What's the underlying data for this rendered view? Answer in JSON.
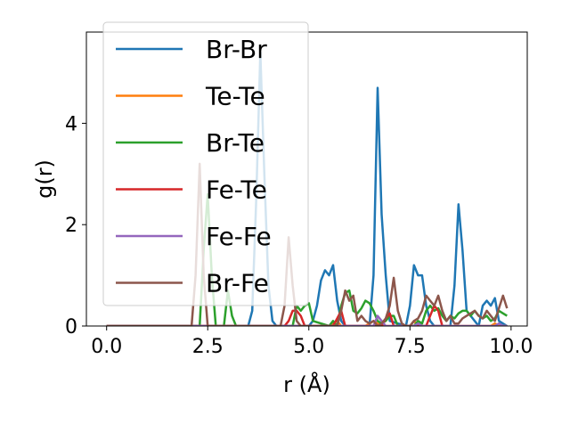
{
  "chart_data": {
    "type": "line",
    "title": "",
    "xlabel": "r (Å)",
    "ylabel": "g(r)",
    "xlim": [
      -0.5,
      10.4
    ],
    "ylim": [
      0,
      5.8
    ],
    "xticks": [
      0.0,
      2.5,
      5.0,
      7.5,
      10.0
    ],
    "xtick_labels": [
      "0.0",
      "2.5",
      "5.0",
      "7.5",
      "10.0"
    ],
    "yticks": [
      0,
      2,
      4
    ],
    "ytick_labels": [
      "0",
      "2",
      "4"
    ],
    "grid": false,
    "legend_position": "upper-left",
    "series": [
      {
        "name": "Br-Br",
        "color": "#1f77b4",
        "x": [
          0,
          3.5,
          3.6,
          3.7,
          3.8,
          3.9,
          4.0,
          4.1,
          4.2,
          5.0,
          5.1,
          5.2,
          5.3,
          5.4,
          5.5,
          5.6,
          5.7,
          5.8,
          5.9,
          6.5,
          6.6,
          6.7,
          6.8,
          6.9,
          7.0,
          7.4,
          7.5,
          7.6,
          7.7,
          7.8,
          7.9,
          8.0,
          8.1,
          8.5,
          8.6,
          8.7,
          8.8,
          8.9,
          9.2,
          9.3,
          9.4,
          9.5,
          9.6,
          9.7,
          9.9
        ],
        "y": [
          0,
          0,
          0.3,
          2.5,
          5.4,
          3.0,
          0.8,
          0.1,
          0,
          0,
          0.1,
          0.4,
          0.9,
          1.1,
          1.0,
          1.2,
          0.5,
          0.1,
          0,
          0,
          1.0,
          4.7,
          2.2,
          1.0,
          0.1,
          0,
          0.4,
          1.2,
          1.0,
          1.0,
          0.4,
          0.1,
          0,
          0,
          0.8,
          2.4,
          1.5,
          0.3,
          0,
          0.4,
          0.5,
          0.4,
          0.55,
          0.1,
          0
        ]
      },
      {
        "name": "Te-Te",
        "color": "#ff7f0e",
        "x": [
          0,
          5.5,
          5.6,
          5.7,
          5.8,
          6.4,
          6.5,
          6.6,
          6.7,
          6.8,
          7.5,
          7.6,
          7.7,
          9.5,
          9.6,
          9.7,
          9.9
        ],
        "y": [
          0,
          0,
          0.05,
          0.1,
          0,
          0,
          0.05,
          0.1,
          0.05,
          0,
          0,
          0.1,
          0,
          0,
          0.05,
          0,
          0
        ]
      },
      {
        "name": "Br-Te",
        "color": "#2ca02c",
        "x": [
          0,
          2.3,
          2.4,
          2.5,
          2.6,
          2.7,
          2.9,
          3.0,
          3.1,
          3.2,
          4.6,
          4.7,
          4.8,
          4.9,
          5.0,
          5.1,
          5.5,
          5.6,
          5.7,
          5.8,
          5.9,
          6.0,
          6.1,
          6.2,
          6.3,
          6.4,
          6.5,
          6.6,
          6.7,
          6.8,
          6.9,
          7.0,
          7.1,
          7.2,
          7.6,
          7.7,
          7.8,
          7.9,
          8.0,
          8.1,
          8.2,
          8.3,
          8.4,
          8.5,
          8.6,
          8.7,
          8.8,
          8.9,
          9.0,
          9.1,
          9.2,
          9.3,
          9.4,
          9.5,
          9.6,
          9.7,
          9.8,
          9.9
        ],
        "y": [
          0,
          0,
          1.5,
          2.6,
          1.0,
          0,
          0,
          0.7,
          0.2,
          0,
          0,
          0.4,
          0.3,
          0.4,
          0.45,
          0.1,
          0,
          0.1,
          0,
          0.4,
          0.65,
          0.7,
          0.3,
          0.25,
          0.35,
          0.5,
          0.45,
          0.3,
          0.1,
          0.05,
          0.1,
          0.2,
          0.2,
          0,
          0,
          0.1,
          0.05,
          0.3,
          0.4,
          0.3,
          0.35,
          0.2,
          0.1,
          0.2,
          0.15,
          0.25,
          0.3,
          0.3,
          0.2,
          0.3,
          0.2,
          0.15,
          0.2,
          0.1,
          0.15,
          0.3,
          0.25,
          0.2
        ]
      },
      {
        "name": "Fe-Te",
        "color": "#d62728",
        "x": [
          0,
          4.4,
          4.5,
          4.6,
          4.7,
          4.8,
          4.9,
          5.6,
          5.7,
          5.8,
          5.9,
          6.8,
          6.9,
          7.0,
          7.1,
          7.9,
          8.0,
          8.1,
          8.2,
          8.3
        ],
        "y": [
          0,
          0,
          0.1,
          0.3,
          0.3,
          0.2,
          0,
          0,
          0.15,
          0.3,
          0,
          0,
          0.15,
          0.25,
          0,
          0,
          0.2,
          0.4,
          0.3,
          0
        ]
      },
      {
        "name": "Fe-Fe",
        "color": "#9467bd",
        "x": [
          0,
          6.6,
          6.7,
          6.8,
          6.9,
          7.6,
          7.7,
          7.8,
          9.6,
          9.7,
          9.8,
          9.9
        ],
        "y": [
          0,
          0,
          0.2,
          0.1,
          0,
          0,
          0.05,
          0,
          0,
          0.05,
          0,
          0
        ]
      },
      {
        "name": "Br-Fe",
        "color": "#8c564b",
        "x": [
          0,
          2.1,
          2.2,
          2.3,
          2.4,
          2.5,
          4.3,
          4.4,
          4.5,
          4.6,
          4.7,
          4.8,
          5.7,
          5.8,
          5.9,
          6.0,
          6.1,
          6.2,
          6.3,
          6.4,
          6.5,
          6.6,
          6.7,
          6.8,
          6.9,
          7.0,
          7.1,
          7.2,
          7.3,
          7.4,
          7.5,
          7.6,
          7.7,
          7.8,
          7.9,
          8.0,
          8.1,
          8.2,
          8.3,
          8.4,
          8.5,
          8.6,
          8.7,
          8.8,
          8.9,
          9.0,
          9.1,
          9.2,
          9.3,
          9.4,
          9.5,
          9.6,
          9.7,
          9.8,
          9.9
        ],
        "y": [
          0,
          0,
          1.0,
          3.2,
          1.0,
          0,
          0,
          0.4,
          1.75,
          0.8,
          0.1,
          0,
          0,
          0.3,
          0.7,
          0.5,
          0.6,
          0.1,
          0.2,
          0.1,
          0.05,
          0.1,
          0,
          0.05,
          0.15,
          0.4,
          0.95,
          0.3,
          0.05,
          0,
          0,
          0.1,
          0.15,
          0.3,
          0.6,
          0.5,
          0.4,
          0.6,
          0.3,
          0.1,
          0.2,
          0.05,
          0.05,
          0.15,
          0.2,
          0.25,
          0.3,
          0.2,
          0.15,
          0.3,
          0.2,
          0.1,
          0.35,
          0.6,
          0.35
        ]
      }
    ]
  }
}
